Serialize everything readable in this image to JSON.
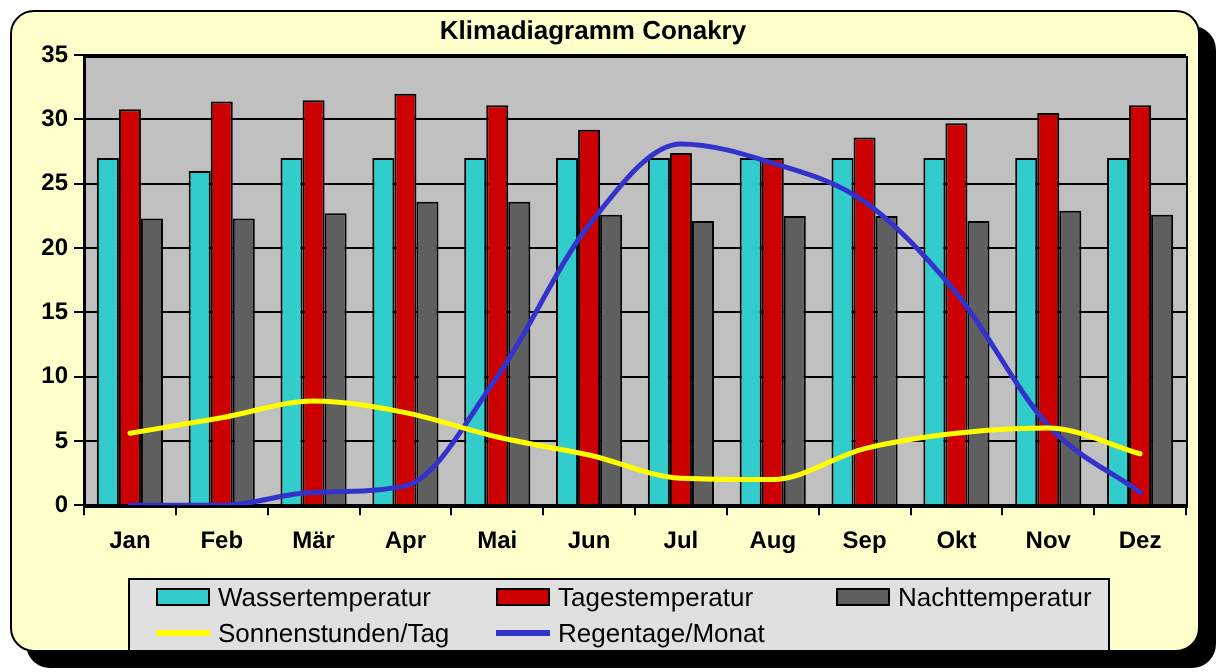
{
  "chart_data": {
    "type": "bar",
    "title": "Klimadiagramm Conakry",
    "categories": [
      "Jan",
      "Feb",
      "Mär",
      "Apr",
      "Mai",
      "Jun",
      "Jul",
      "Aug",
      "Sep",
      "Okt",
      "Nov",
      "Dez"
    ],
    "series": [
      {
        "name": "Wassertemperatur",
        "color": "#33cccc",
        "values": [
          27,
          26,
          27,
          27,
          27,
          27,
          27,
          27,
          27,
          27,
          27,
          27
        ]
      },
      {
        "name": "Tagestemperatur",
        "color": "#cc0000",
        "values": [
          30.8,
          31.4,
          31.5,
          32,
          31.1,
          29.2,
          27.4,
          27,
          28.6,
          29.7,
          30.5,
          31.1
        ]
      },
      {
        "name": "Nachttemperatur",
        "color": "#5f5f5f",
        "values": [
          22.3,
          22.3,
          22.7,
          23.6,
          23.6,
          22.6,
          22.1,
          22.5,
          22.5,
          22.1,
          22.9,
          22.6
        ]
      },
      {
        "name": "Sonnenstunden/Tag",
        "type": "line",
        "color": "#ffff00",
        "values": [
          5.6,
          6.8,
          8.1,
          7.2,
          5.3,
          3.9,
          2.1,
          2.0,
          4.4,
          5.6,
          6.0,
          4.0
        ]
      },
      {
        "name": "Regentage/Monat",
        "type": "line",
        "color": "#3333cc",
        "values": [
          0,
          0,
          1,
          1.5,
          10,
          21.8,
          28.1,
          26.6,
          23.6,
          16.5,
          6.2,
          1
        ]
      }
    ],
    "ylim": [
      0,
      35
    ],
    "yticks": [
      0,
      5,
      10,
      15,
      20,
      25,
      30,
      35
    ],
    "grid": "y",
    "legend": "bottom",
    "marker": "none"
  }
}
